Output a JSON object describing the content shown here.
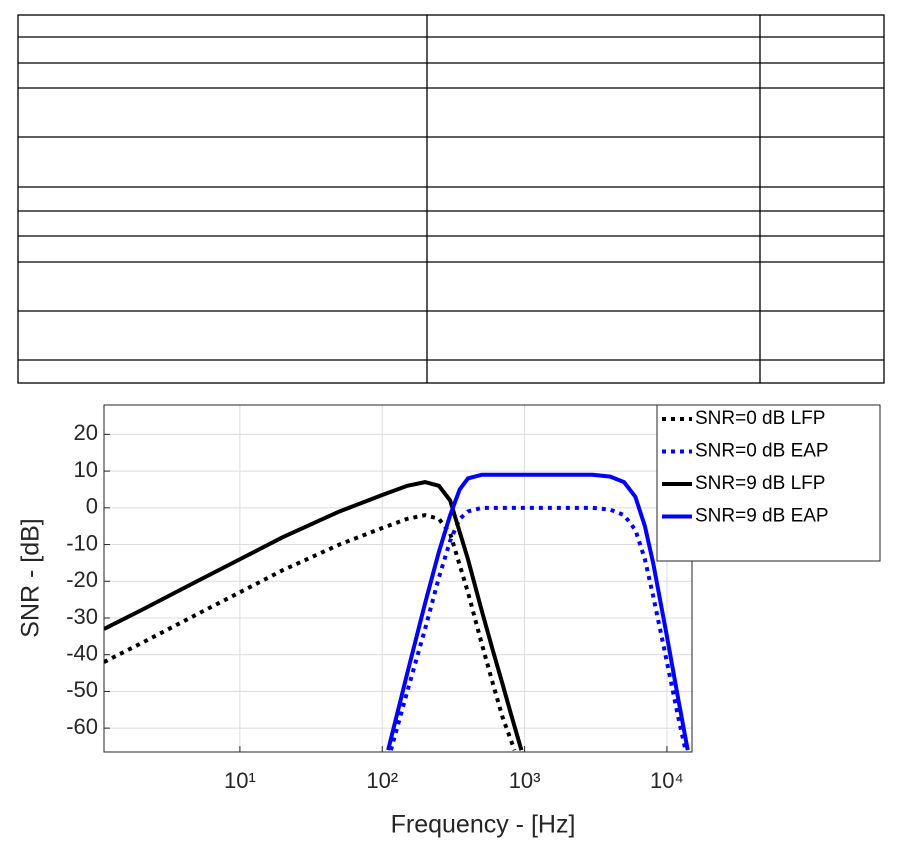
{
  "chart_data": {
    "type": "line",
    "x_label": "Frequency - [Hz]",
    "y_label": "SNR - [dB]",
    "xscale": "log",
    "xlim": [
      1.11,
      15000
    ],
    "ylim": [
      -66.5,
      28
    ],
    "xticks": [
      {
        "value": 10,
        "label": "10¹"
      },
      {
        "value": 100,
        "label": "10²"
      },
      {
        "value": 1000,
        "label": "10³"
      },
      {
        "value": 10000,
        "label": "10⁴"
      }
    ],
    "yticks": [
      20,
      10,
      0,
      -10,
      -20,
      -30,
      -40,
      -50,
      -60
    ],
    "grid": true,
    "legend": "upper right",
    "series": [
      {
        "name": "SNR=0 dB LFP",
        "color": "#000000",
        "dash": "dotted",
        "x": [
          1.11,
          2,
          5,
          10,
          20,
          50,
          100,
          150,
          200,
          250,
          300,
          400,
          500,
          600,
          700,
          850
        ],
        "values": [
          -42,
          -37,
          -29,
          -23,
          -17,
          -10,
          -5.5,
          -3,
          -2,
          -3,
          -7,
          -23,
          -37,
          -48,
          -57,
          -66
        ]
      },
      {
        "name": "SNR=0 dB EAP",
        "color": "#0000ff",
        "dash": "dotted",
        "x": [
          115,
          150,
          200,
          250,
          300,
          350,
          400,
          500,
          700,
          1000,
          2000,
          3000,
          4000,
          5000,
          6000,
          7000,
          8000,
          10000,
          12000,
          13500
        ],
        "values": [
          -66,
          -50,
          -33,
          -19,
          -9,
          -3,
          -1,
          0,
          0,
          0,
          0,
          0,
          -0.5,
          -2,
          -6,
          -14,
          -24,
          -42,
          -57,
          -66
        ]
      },
      {
        "name": "SNR=9 dB LFP",
        "color": "#000000",
        "dash": "solid",
        "x": [
          1.11,
          2,
          5,
          10,
          20,
          50,
          100,
          150,
          200,
          250,
          300,
          400,
          500,
          600,
          700,
          800,
          950
        ],
        "values": [
          -33,
          -28,
          -20,
          -14,
          -8,
          -1,
          3.5,
          6,
          7,
          6,
          2,
          -14,
          -28,
          -39,
          -48,
          -56,
          -66
        ]
      },
      {
        "name": "SNR=9 dB EAP",
        "color": "#0000ff",
        "dash": "solid",
        "x": [
          110,
          150,
          200,
          250,
          300,
          350,
          400,
          500,
          700,
          1000,
          2000,
          3000,
          4000,
          5000,
          6000,
          7000,
          8000,
          10000,
          12000,
          14000
        ],
        "values": [
          -66,
          -45,
          -26,
          -12,
          -2,
          5,
          8,
          9,
          9,
          9,
          9,
          9,
          8.5,
          7,
          3,
          -5,
          -15,
          -35,
          -52,
          -66
        ]
      }
    ]
  }
}
